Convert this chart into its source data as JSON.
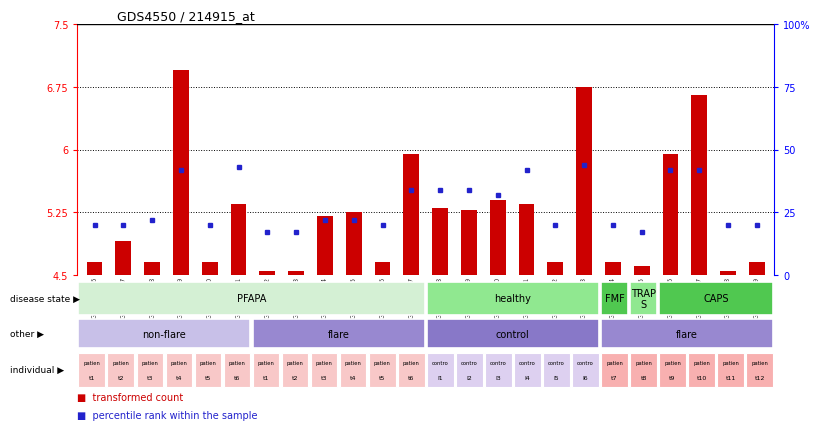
{
  "title": "GDS4550 / 214915_at",
  "samples": [
    "GSM442636",
    "GSM442637",
    "GSM442638",
    "GSM442639",
    "GSM442640",
    "GSM442641",
    "GSM442642",
    "GSM442643",
    "GSM442644",
    "GSM442645",
    "GSM442646",
    "GSM442647",
    "GSM442648",
    "GSM442649",
    "GSM442650",
    "GSM442651",
    "GSM442652",
    "GSM442653",
    "GSM442654",
    "GSM442655",
    "GSM442656",
    "GSM442657",
    "GSM442658",
    "GSM442659"
  ],
  "red_values": [
    4.65,
    4.9,
    4.65,
    6.95,
    4.65,
    5.35,
    4.55,
    4.55,
    5.2,
    5.25,
    4.65,
    5.95,
    5.3,
    5.28,
    5.4,
    5.35,
    4.65,
    6.75,
    4.65,
    4.6,
    5.95,
    6.65,
    4.55,
    4.65
  ],
  "blue_percentiles": [
    20,
    20,
    22,
    42,
    20,
    43,
    17,
    17,
    22,
    22,
    20,
    34,
    34,
    34,
    32,
    42,
    20,
    44,
    20,
    17,
    42,
    42,
    20,
    20
  ],
  "bar_base": 4.5,
  "ylim_left": [
    4.5,
    7.5
  ],
  "yticks_left": [
    4.5,
    5.25,
    6.0,
    6.75,
    7.5
  ],
  "ytick_labels_left": [
    "4.5",
    "5.25",
    "6",
    "6.75",
    "7.5"
  ],
  "ylim_right": [
    0,
    100
  ],
  "yticks_right": [
    0,
    25,
    50,
    75,
    100
  ],
  "ytick_labels_right": [
    "0",
    "25",
    "50",
    "75",
    "100%"
  ],
  "hlines": [
    5.25,
    6.0,
    6.75
  ],
  "disease_state_regions": [
    {
      "label": "PFAPA",
      "start": 0,
      "end": 12,
      "color": "#d4f0d4"
    },
    {
      "label": "healthy",
      "start": 12,
      "end": 18,
      "color": "#90e890"
    },
    {
      "label": "FMF",
      "start": 18,
      "end": 19,
      "color": "#50c850"
    },
    {
      "label": "TRAP\nS",
      "start": 19,
      "end": 20,
      "color": "#90e890"
    },
    {
      "label": "CAPS",
      "start": 20,
      "end": 24,
      "color": "#50c850"
    }
  ],
  "other_regions": [
    {
      "label": "non-flare",
      "start": 0,
      "end": 6,
      "color": "#c8c0e8"
    },
    {
      "label": "flare",
      "start": 6,
      "end": 12,
      "color": "#9888d0"
    },
    {
      "label": "control",
      "start": 12,
      "end": 18,
      "color": "#8878c8"
    },
    {
      "label": "flare",
      "start": 18,
      "end": 24,
      "color": "#9888d0"
    }
  ],
  "individual_labels_top": [
    "patien",
    "patien",
    "patien",
    "patien",
    "patien",
    "patien",
    "patien",
    "patien",
    "patien",
    "patien",
    "patien",
    "patien",
    "contro",
    "contro",
    "contro",
    "contro",
    "contro",
    "contro",
    "patien",
    "patien",
    "patien",
    "patien",
    "patien",
    "patien"
  ],
  "individual_labels_bot": [
    "t1",
    "t2",
    "t3",
    "t4",
    "t5",
    "t6",
    "t1",
    "t2",
    "t3",
    "t4",
    "t5",
    "t6",
    "l1",
    "l2",
    "l3",
    "l4",
    "l5",
    "l6",
    "t7",
    "t8",
    "t9",
    "t10",
    "t11",
    "t12"
  ],
  "individual_colors": [
    "#f8c8c8",
    "#f8c8c8",
    "#f8c8c8",
    "#f8c8c8",
    "#f8c8c8",
    "#f8c8c8",
    "#f8c8c8",
    "#f8c8c8",
    "#f8c8c8",
    "#f8c8c8",
    "#f8c8c8",
    "#f8c8c8",
    "#ddd0f0",
    "#ddd0f0",
    "#ddd0f0",
    "#ddd0f0",
    "#ddd0f0",
    "#ddd0f0",
    "#f8b0b0",
    "#f8b0b0",
    "#f8b0b0",
    "#f8b0b0",
    "#f8b0b0",
    "#f8b0b0"
  ],
  "red_color": "#cc0000",
  "blue_color": "#2222cc",
  "bar_width": 0.55
}
